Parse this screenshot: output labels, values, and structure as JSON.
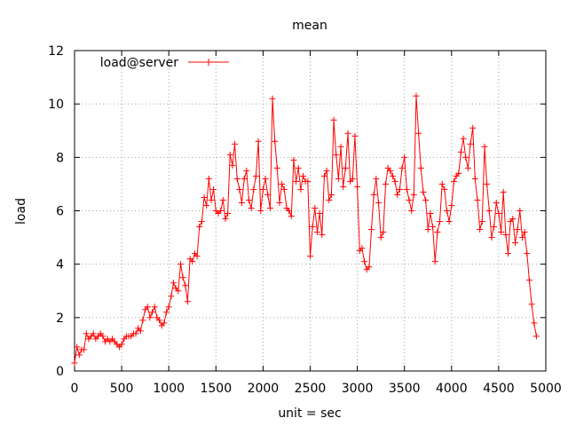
{
  "chart_data": {
    "type": "line",
    "title": "mean",
    "xlabel": "unit = sec",
    "ylabel": "load",
    "xlim": [
      0,
      5000
    ],
    "ylim": [
      0,
      12
    ],
    "xticks": [
      0,
      500,
      1000,
      1500,
      2000,
      2500,
      3000,
      3500,
      4000,
      4500,
      5000
    ],
    "yticks": [
      0,
      2,
      4,
      6,
      8,
      10,
      12
    ],
    "grid": true,
    "legend_position": "top-left",
    "series": [
      {
        "name": "load@server",
        "color": "#ff0000",
        "marker": "plus",
        "x": [
          0,
          25,
          50,
          75,
          100,
          125,
          150,
          175,
          200,
          225,
          250,
          275,
          300,
          325,
          350,
          375,
          400,
          425,
          450,
          475,
          500,
          525,
          550,
          575,
          600,
          625,
          650,
          675,
          700,
          725,
          750,
          775,
          800,
          825,
          850,
          875,
          900,
          925,
          950,
          975,
          1000,
          1025,
          1050,
          1075,
          1100,
          1125,
          1150,
          1175,
          1200,
          1225,
          1250,
          1275,
          1300,
          1325,
          1350,
          1375,
          1400,
          1425,
          1450,
          1475,
          1500,
          1525,
          1550,
          1575,
          1600,
          1625,
          1650,
          1675,
          1700,
          1725,
          1750,
          1775,
          1800,
          1825,
          1850,
          1875,
          1900,
          1925,
          1950,
          1975,
          2000,
          2025,
          2050,
          2075,
          2100,
          2125,
          2150,
          2175,
          2200,
          2225,
          2250,
          2275,
          2300,
          2325,
          2350,
          2375,
          2400,
          2425,
          2450,
          2475,
          2500,
          2525,
          2550,
          2575,
          2600,
          2625,
          2650,
          2675,
          2700,
          2725,
          2750,
          2775,
          2800,
          2825,
          2850,
          2875,
          2900,
          2925,
          2950,
          2975,
          3000,
          3025,
          3050,
          3075,
          3100,
          3125,
          3150,
          3175,
          3200,
          3225,
          3250,
          3275,
          3300,
          3325,
          3350,
          3375,
          3400,
          3425,
          3450,
          3475,
          3500,
          3525,
          3550,
          3575,
          3600,
          3625,
          3650,
          3675,
          3700,
          3725,
          3750,
          3775,
          3800,
          3825,
          3850,
          3875,
          3900,
          3925,
          3950,
          3975,
          4000,
          4025,
          4050,
          4075,
          4100,
          4125,
          4150,
          4175,
          4200,
          4225,
          4250,
          4275,
          4300,
          4325,
          4350,
          4375,
          4400,
          4425,
          4450,
          4475,
          4500,
          4525,
          4550,
          4575,
          4600,
          4625,
          4650,
          4675,
          4700,
          4725,
          4750,
          4775,
          4800,
          4825,
          4850,
          4875,
          4900
        ],
        "y": [
          0.3,
          0.9,
          0.6,
          0.8,
          0.8,
          1.4,
          1.2,
          1.3,
          1.4,
          1.2,
          1.3,
          1.4,
          1.3,
          1.1,
          1.2,
          1.1,
          1.2,
          1.1,
          1.0,
          0.9,
          1.0,
          1.2,
          1.3,
          1.3,
          1.3,
          1.4,
          1.4,
          1.6,
          1.5,
          1.9,
          2.3,
          2.4,
          2.0,
          2.2,
          2.4,
          2.0,
          1.9,
          1.7,
          1.8,
          2.2,
          2.4,
          2.8,
          3.3,
          3.1,
          3.0,
          4.0,
          3.5,
          3.2,
          2.6,
          4.2,
          4.1,
          4.4,
          4.3,
          5.4,
          5.6,
          6.5,
          6.2,
          7.2,
          6.4,
          6.8,
          6.0,
          5.9,
          6.0,
          6.4,
          5.7,
          5.9,
          8.1,
          7.7,
          8.5,
          7.2,
          6.8,
          6.3,
          7.2,
          7.5,
          6.4,
          6.1,
          6.8,
          7.3,
          8.6,
          6.0,
          6.8,
          7.2,
          6.6,
          6.1,
          10.2,
          8.6,
          7.6,
          6.3,
          7.0,
          6.8,
          6.1,
          6.0,
          5.8,
          7.9,
          7.1,
          7.6,
          6.8,
          7.3,
          7.1,
          7.1,
          4.3,
          5.4,
          6.1,
          5.2,
          5.9,
          5.1,
          7.3,
          7.5,
          6.4,
          6.6,
          9.4,
          8.1,
          7.2,
          8.4,
          6.9,
          7.6,
          8.9,
          7.1,
          7.2,
          8.8,
          6.9,
          4.5,
          4.6,
          4.1,
          3.8,
          3.9,
          5.3,
          6.6,
          7.2,
          6.3,
          5.0,
          5.2,
          7.0,
          7.6,
          7.5,
          7.3,
          7.1,
          6.6,
          6.8,
          7.6,
          8.0,
          6.8,
          6.4,
          6.0,
          6.6,
          10.3,
          8.9,
          7.6,
          6.7,
          6.4,
          5.3,
          5.9,
          5.4,
          4.1,
          5.2,
          5.6,
          7.0,
          6.8,
          6.0,
          5.6,
          6.2,
          7.1,
          7.3,
          7.4,
          8.2,
          8.7,
          8.0,
          7.6,
          8.5,
          9.1,
          7.2,
          6.4,
          5.3,
          5.6,
          8.4,
          7.0,
          6.0,
          5.0,
          5.4,
          6.3,
          5.9,
          5.2,
          6.7,
          5.1,
          4.4,
          5.6,
          5.7,
          4.8,
          5.3,
          6.0,
          5.0,
          5.2,
          4.4,
          3.4,
          2.5,
          1.8,
          1.3
        ]
      }
    ]
  }
}
